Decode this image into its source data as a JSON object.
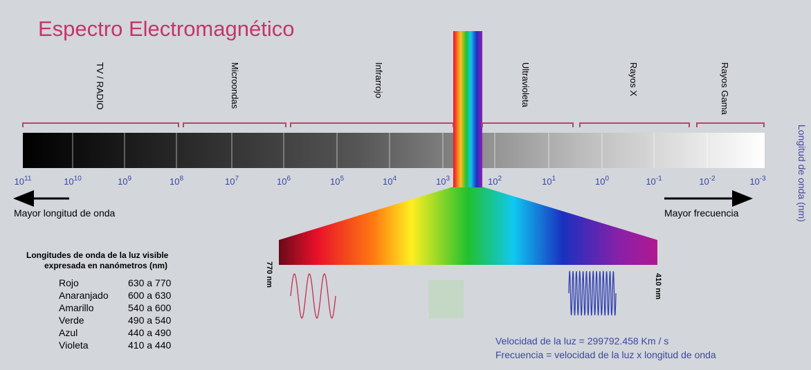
{
  "title": "Espectro Electromagnético",
  "bands": [
    "TV / RADIO",
    "Microondas",
    "Infrarrojo",
    "Ultravioleta",
    "Rayos X",
    "Rayos Gama"
  ],
  "scale": [
    {
      "base": "10",
      "exp": "11"
    },
    {
      "base": "10",
      "exp": "10"
    },
    {
      "base": "10",
      "exp": "9"
    },
    {
      "base": "10",
      "exp": "8"
    },
    {
      "base": "10",
      "exp": "7"
    },
    {
      "base": "10",
      "exp": "6"
    },
    {
      "base": "10",
      "exp": "5"
    },
    {
      "base": "10",
      "exp": "4"
    },
    {
      "base": "10",
      "exp": "3"
    },
    {
      "base": "10",
      "exp": "2"
    },
    {
      "base": "10",
      "exp": "1"
    },
    {
      "base": "10",
      "exp": "0"
    },
    {
      "base": "10",
      "exp": "-1"
    },
    {
      "base": "10",
      "exp": "-2"
    },
    {
      "base": "10",
      "exp": "-3"
    }
  ],
  "left_arrow": "Mayor longitud de onda",
  "right_arrow": "Mayor frecuencia",
  "axis_label": "Longitud de onda (nm)",
  "legend": {
    "title_line1": "Longitudes de onda de la luz visible",
    "title_line2": "expresada en nanómetros (nm)",
    "rows": [
      [
        "Rojo",
        "630 a 770"
      ],
      [
        "Anaranjado",
        "600 a 630"
      ],
      [
        "Amarillo",
        "540 a 600"
      ],
      [
        "Verde",
        "490 a 540"
      ],
      [
        "Azul",
        "440 a 490"
      ],
      [
        "Violeta",
        "410 a 440"
      ]
    ]
  },
  "spectrum_left": "770 nm",
  "spectrum_right": "410 nm",
  "footer": {
    "speed": "Velocidad de la luz = 299792.458  Km / s",
    "formula": "Frecuencia = velocidad de la luz x longitud de onda"
  }
}
